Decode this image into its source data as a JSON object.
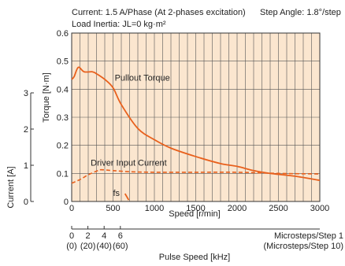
{
  "chart_data": {
    "type": "line",
    "header": {
      "line1_left": "Current: 1.5 A/Phase (At 2-phases excitation)",
      "line1_right": "Step Angle: 1.8°/step",
      "line2": "Load Inertia: JL=0 kg·m²"
    },
    "xlabel": "Speed [r/min]",
    "ylabel": "Torque [N·m]",
    "y2label": "Current [A]",
    "xlim": [
      0,
      3000
    ],
    "ylim": [
      0,
      0.6
    ],
    "x_ticks": [
      "0",
      "500",
      "1000",
      "1500",
      "2000",
      "2500",
      "3000"
    ],
    "y_ticks": [
      "0",
      "0.1",
      "0.2",
      "0.3",
      "0.4",
      "0.5",
      "0.6"
    ],
    "current_axis": {
      "range": [
        0,
        3
      ],
      "ticks": [
        "0",
        "1",
        "2",
        "3"
      ]
    },
    "pulse_axis": {
      "label": "Pulse Speed [kHz]",
      "ticks_top": [
        "0",
        "2",
        "4",
        "6"
      ],
      "ticks_bottom": [
        "(0)",
        "(20)",
        "(40)",
        "(60)"
      ],
      "tick_values_khz": [
        0,
        2,
        4,
        6
      ],
      "note_top": "Microsteps/Step 1",
      "note_bottom": "(Microsteps/Step 10)"
    },
    "grid": true,
    "background_color": "#fbe6cf",
    "series_color": "#e8601c",
    "series": [
      {
        "name": "Pullout Torque",
        "style": "solid",
        "x": [
          0,
          30,
          80,
          150,
          250,
          300,
          400,
          500,
          600,
          800,
          1000,
          1200,
          1500,
          1800,
          2000,
          2200,
          2400,
          2700,
          3000
        ],
        "y": [
          0.435,
          0.445,
          0.478,
          0.462,
          0.462,
          0.455,
          0.435,
          0.405,
          0.345,
          0.26,
          0.22,
          0.19,
          0.16,
          0.135,
          0.125,
          0.11,
          0.1,
          0.09,
          0.075
        ]
      },
      {
        "name": "Driver Input Current",
        "style": "dashed",
        "x": [
          0,
          100,
          200,
          300,
          350,
          500,
          700,
          1000,
          1500,
          2000,
          2500,
          3000
        ],
        "y": [
          0.065,
          0.078,
          0.095,
          0.108,
          0.113,
          0.11,
          0.106,
          0.104,
          0.104,
          0.104,
          0.1,
          0.098
        ]
      },
      {
        "name": "fs",
        "style": "solid",
        "x": [
          645,
          690
        ],
        "y": [
          0.028,
          0.005
        ]
      }
    ],
    "annotations": [
      {
        "text": "Pullout Torque",
        "x": 520,
        "y": 0.43
      },
      {
        "text": "Driver Input Current",
        "x": 230,
        "y": 0.127
      },
      {
        "text": "fs",
        "x": 500,
        "y": 0.02
      }
    ]
  }
}
